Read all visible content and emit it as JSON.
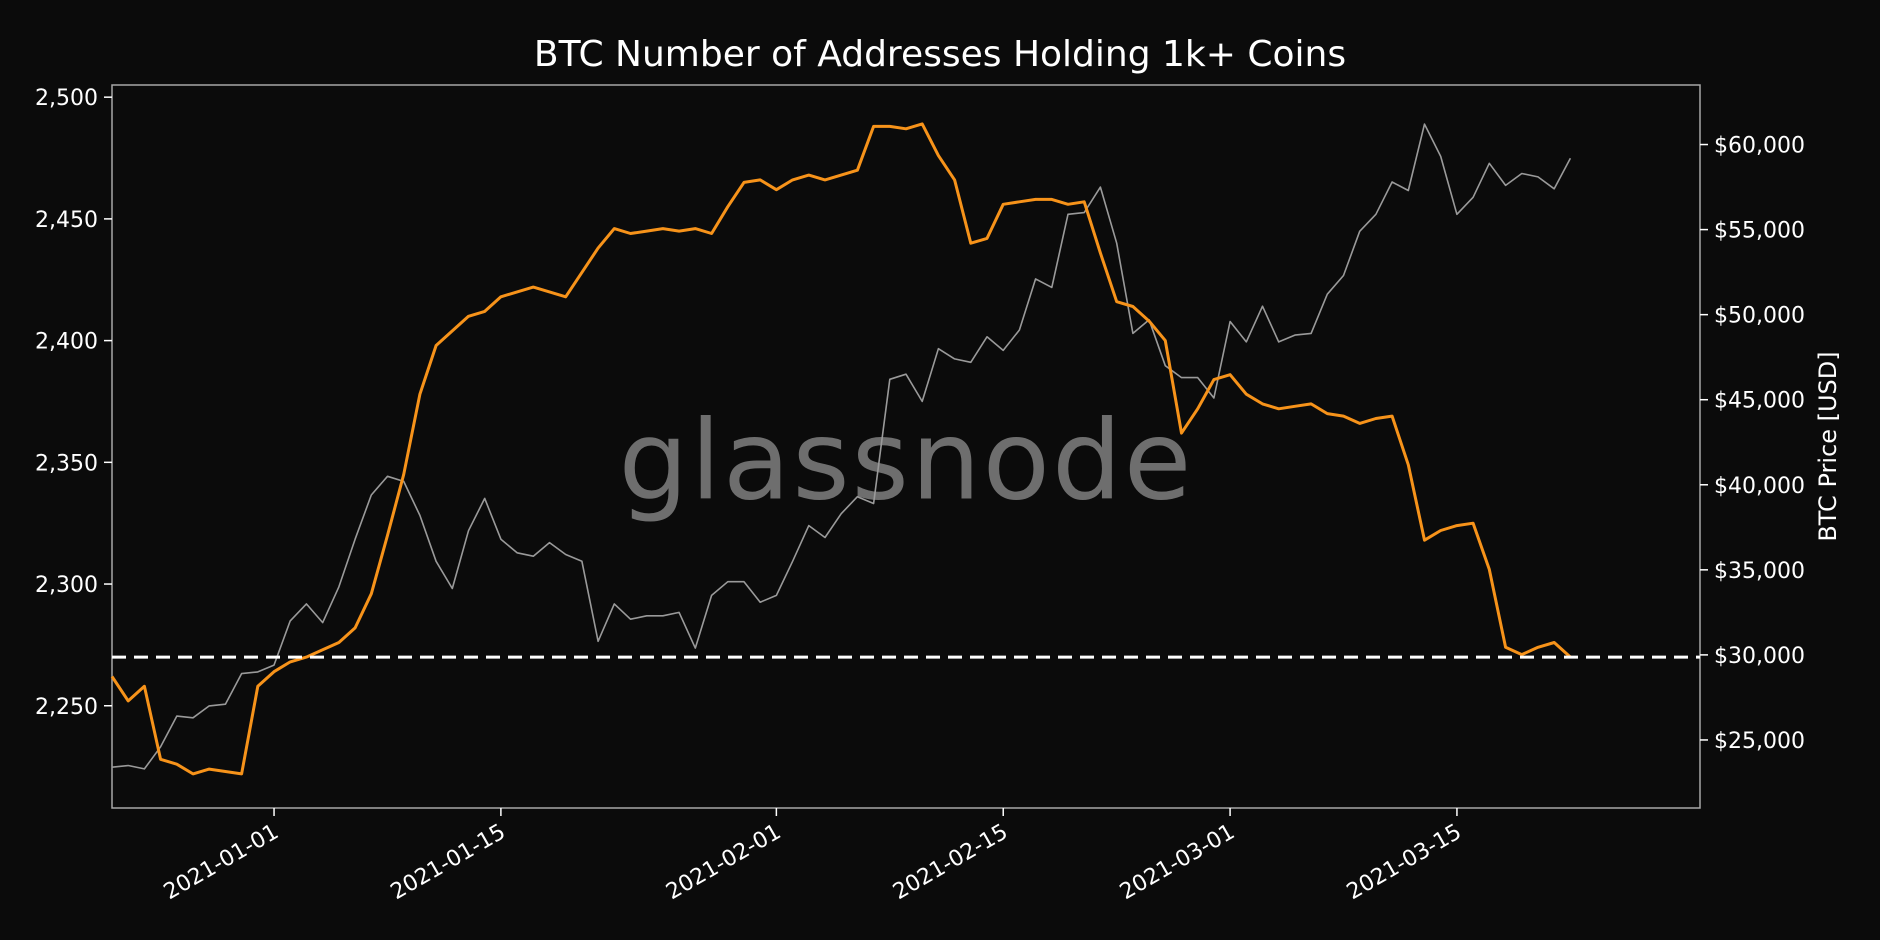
{
  "chart_data": {
    "type": "line",
    "title": "BTC Number of Addresses Holding 1k+ Coins",
    "watermark": "glassnode",
    "x_ticks": [
      "2021-01-01",
      "2021-01-15",
      "2021-02-01",
      "2021-02-15",
      "2021-03-01",
      "2021-03-15"
    ],
    "xlim": [
      "2020-12-22",
      "2021-03-30"
    ],
    "y_left": {
      "label": "",
      "range": [
        2208,
        2505
      ],
      "ticks": [
        2250,
        2300,
        2350,
        2400,
        2450,
        2500
      ],
      "tick_labels": [
        "2,250",
        "2,300",
        "2,350",
        "2,400",
        "2,450",
        "2,500"
      ]
    },
    "y_right": {
      "label": "BTC Price [USD]",
      "range": [
        21000,
        63500
      ],
      "ticks": [
        25000,
        30000,
        35000,
        40000,
        45000,
        50000,
        55000,
        60000
      ],
      "tick_labels": [
        "$25,000",
        "$30,000",
        "$35,000",
        "$40,000",
        "$45,000",
        "$50,000",
        "$55,000",
        "$60,000"
      ]
    },
    "reference_line": {
      "axis": "left",
      "value": 2270,
      "style": "dashed",
      "color": "#ffffff"
    },
    "grid": false,
    "series": [
      {
        "axis": "left",
        "color": "#f7931a",
        "points": [
          [
            "2020-12-22",
            2262
          ],
          [
            "2020-12-23",
            2252
          ],
          [
            "2020-12-24",
            2258
          ],
          [
            "2020-12-25",
            2228
          ],
          [
            "2020-12-26",
            2226
          ],
          [
            "2020-12-27",
            2222
          ],
          [
            "2020-12-28",
            2224
          ],
          [
            "2020-12-29",
            2223
          ],
          [
            "2020-12-30",
            2222
          ],
          [
            "2020-12-31",
            2258
          ],
          [
            "2021-01-01",
            2264
          ],
          [
            "2021-01-02",
            2268
          ],
          [
            "2021-01-03",
            2270
          ],
          [
            "2021-01-04",
            2273
          ],
          [
            "2021-01-05",
            2276
          ],
          [
            "2021-01-06",
            2282
          ],
          [
            "2021-01-07",
            2296
          ],
          [
            "2021-01-08",
            2320
          ],
          [
            "2021-01-09",
            2345
          ],
          [
            "2021-01-10",
            2378
          ],
          [
            "2021-01-11",
            2398
          ],
          [
            "2021-01-12",
            2404
          ],
          [
            "2021-01-13",
            2410
          ],
          [
            "2021-01-14",
            2412
          ],
          [
            "2021-01-15",
            2418
          ],
          [
            "2021-01-16",
            2420
          ],
          [
            "2021-01-17",
            2422
          ],
          [
            "2021-01-18",
            2420
          ],
          [
            "2021-01-19",
            2418
          ],
          [
            "2021-01-20",
            2428
          ],
          [
            "2021-01-21",
            2438
          ],
          [
            "2021-01-22",
            2446
          ],
          [
            "2021-01-23",
            2444
          ],
          [
            "2021-01-24",
            2445
          ],
          [
            "2021-01-25",
            2446
          ],
          [
            "2021-01-26",
            2445
          ],
          [
            "2021-01-27",
            2446
          ],
          [
            "2021-01-28",
            2444
          ],
          [
            "2021-01-29",
            2455
          ],
          [
            "2021-01-30",
            2465
          ],
          [
            "2021-01-31",
            2466
          ],
          [
            "2021-02-01",
            2462
          ],
          [
            "2021-02-02",
            2466
          ],
          [
            "2021-02-03",
            2468
          ],
          [
            "2021-02-04",
            2466
          ],
          [
            "2021-02-05",
            2468
          ],
          [
            "2021-02-06",
            2470
          ],
          [
            "2021-02-07",
            2488
          ],
          [
            "2021-02-08",
            2488
          ],
          [
            "2021-02-09",
            2487
          ],
          [
            "2021-02-10",
            2489
          ],
          [
            "2021-02-11",
            2476
          ],
          [
            "2021-02-12",
            2466
          ],
          [
            "2021-02-13",
            2440
          ],
          [
            "2021-02-14",
            2442
          ],
          [
            "2021-02-15",
            2456
          ],
          [
            "2021-02-16",
            2457
          ],
          [
            "2021-02-17",
            2458
          ],
          [
            "2021-02-18",
            2458
          ],
          [
            "2021-02-19",
            2456
          ],
          [
            "2021-02-20",
            2457
          ],
          [
            "2021-02-21",
            2436
          ],
          [
            "2021-02-22",
            2416
          ],
          [
            "2021-02-23",
            2414
          ],
          [
            "2021-02-24",
            2408
          ],
          [
            "2021-02-25",
            2400
          ],
          [
            "2021-02-26",
            2362
          ],
          [
            "2021-02-27",
            2372
          ],
          [
            "2021-02-28",
            2384
          ],
          [
            "2021-03-01",
            2386
          ],
          [
            "2021-03-02",
            2378
          ],
          [
            "2021-03-03",
            2374
          ],
          [
            "2021-03-04",
            2372
          ],
          [
            "2021-03-05",
            2373
          ],
          [
            "2021-03-06",
            2374
          ],
          [
            "2021-03-07",
            2370
          ],
          [
            "2021-03-08",
            2369
          ],
          [
            "2021-03-09",
            2366
          ],
          [
            "2021-03-10",
            2368
          ],
          [
            "2021-03-11",
            2369
          ],
          [
            "2021-03-12",
            2349
          ],
          [
            "2021-03-13",
            2318
          ],
          [
            "2021-03-14",
            2322
          ],
          [
            "2021-03-15",
            2324
          ],
          [
            "2021-03-16",
            2325
          ],
          [
            "2021-03-17",
            2306
          ],
          [
            "2021-03-18",
            2274
          ],
          [
            "2021-03-19",
            2271
          ],
          [
            "2021-03-20",
            2274
          ],
          [
            "2021-03-21",
            2276
          ],
          [
            "2021-03-22",
            2270
          ]
        ]
      },
      {
        "axis": "right",
        "color": "#9a9a9a",
        "points": [
          [
            "2020-12-22",
            23400
          ],
          [
            "2020-12-23",
            23500
          ],
          [
            "2020-12-24",
            23300
          ],
          [
            "2020-12-25",
            24600
          ],
          [
            "2020-12-26",
            26400
          ],
          [
            "2020-12-27",
            26300
          ],
          [
            "2020-12-28",
            27000
          ],
          [
            "2020-12-29",
            27100
          ],
          [
            "2020-12-30",
            28900
          ],
          [
            "2020-12-31",
            29000
          ],
          [
            "2021-01-01",
            29400
          ],
          [
            "2021-01-02",
            32000
          ],
          [
            "2021-01-03",
            33000
          ],
          [
            "2021-01-04",
            31900
          ],
          [
            "2021-01-05",
            34000
          ],
          [
            "2021-01-06",
            36800
          ],
          [
            "2021-01-07",
            39400
          ],
          [
            "2021-01-08",
            40500
          ],
          [
            "2021-01-09",
            40200
          ],
          [
            "2021-01-10",
            38200
          ],
          [
            "2021-01-11",
            35500
          ],
          [
            "2021-01-12",
            33900
          ],
          [
            "2021-01-13",
            37300
          ],
          [
            "2021-01-14",
            39200
          ],
          [
            "2021-01-15",
            36800
          ],
          [
            "2021-01-16",
            36000
          ],
          [
            "2021-01-17",
            35800
          ],
          [
            "2021-01-18",
            36600
          ],
          [
            "2021-01-19",
            35900
          ],
          [
            "2021-01-20",
            35500
          ],
          [
            "2021-01-21",
            30800
          ],
          [
            "2021-01-22",
            33000
          ],
          [
            "2021-01-23",
            32100
          ],
          [
            "2021-01-24",
            32300
          ],
          [
            "2021-01-25",
            32300
          ],
          [
            "2021-01-26",
            32500
          ],
          [
            "2021-01-27",
            30400
          ],
          [
            "2021-01-28",
            33500
          ],
          [
            "2021-01-29",
            34300
          ],
          [
            "2021-01-30",
            34300
          ],
          [
            "2021-01-31",
            33100
          ],
          [
            "2021-02-01",
            33500
          ],
          [
            "2021-02-02",
            35500
          ],
          [
            "2021-02-03",
            37600
          ],
          [
            "2021-02-04",
            36900
          ],
          [
            "2021-02-05",
            38300
          ],
          [
            "2021-02-06",
            39300
          ],
          [
            "2021-02-07",
            38900
          ],
          [
            "2021-02-08",
            46200
          ],
          [
            "2021-02-09",
            46500
          ],
          [
            "2021-02-10",
            44900
          ],
          [
            "2021-02-11",
            48000
          ],
          [
            "2021-02-12",
            47400
          ],
          [
            "2021-02-13",
            47200
          ],
          [
            "2021-02-14",
            48700
          ],
          [
            "2021-02-15",
            47900
          ],
          [
            "2021-02-16",
            49100
          ],
          [
            "2021-02-17",
            52100
          ],
          [
            "2021-02-18",
            51600
          ],
          [
            "2021-02-19",
            55900
          ],
          [
            "2021-02-20",
            56000
          ],
          [
            "2021-02-21",
            57500
          ],
          [
            "2021-02-22",
            54200
          ],
          [
            "2021-02-23",
            48900
          ],
          [
            "2021-02-24",
            49700
          ],
          [
            "2021-02-25",
            47000
          ],
          [
            "2021-02-26",
            46300
          ],
          [
            "2021-02-27",
            46300
          ],
          [
            "2021-02-28",
            45100
          ],
          [
            "2021-03-01",
            49600
          ],
          [
            "2021-03-02",
            48400
          ],
          [
            "2021-03-03",
            50500
          ],
          [
            "2021-03-04",
            48400
          ],
          [
            "2021-03-05",
            48800
          ],
          [
            "2021-03-06",
            48900
          ],
          [
            "2021-03-07",
            51200
          ],
          [
            "2021-03-08",
            52300
          ],
          [
            "2021-03-09",
            54900
          ],
          [
            "2021-03-10",
            55900
          ],
          [
            "2021-03-11",
            57800
          ],
          [
            "2021-03-12",
            57300
          ],
          [
            "2021-03-13",
            61200
          ],
          [
            "2021-03-14",
            59300
          ],
          [
            "2021-03-15",
            55900
          ],
          [
            "2021-03-16",
            56900
          ],
          [
            "2021-03-17",
            58900
          ],
          [
            "2021-03-18",
            57600
          ],
          [
            "2021-03-19",
            58300
          ],
          [
            "2021-03-20",
            58100
          ],
          [
            "2021-03-21",
            57400
          ],
          [
            "2021-03-22",
            59200
          ]
        ]
      }
    ]
  }
}
